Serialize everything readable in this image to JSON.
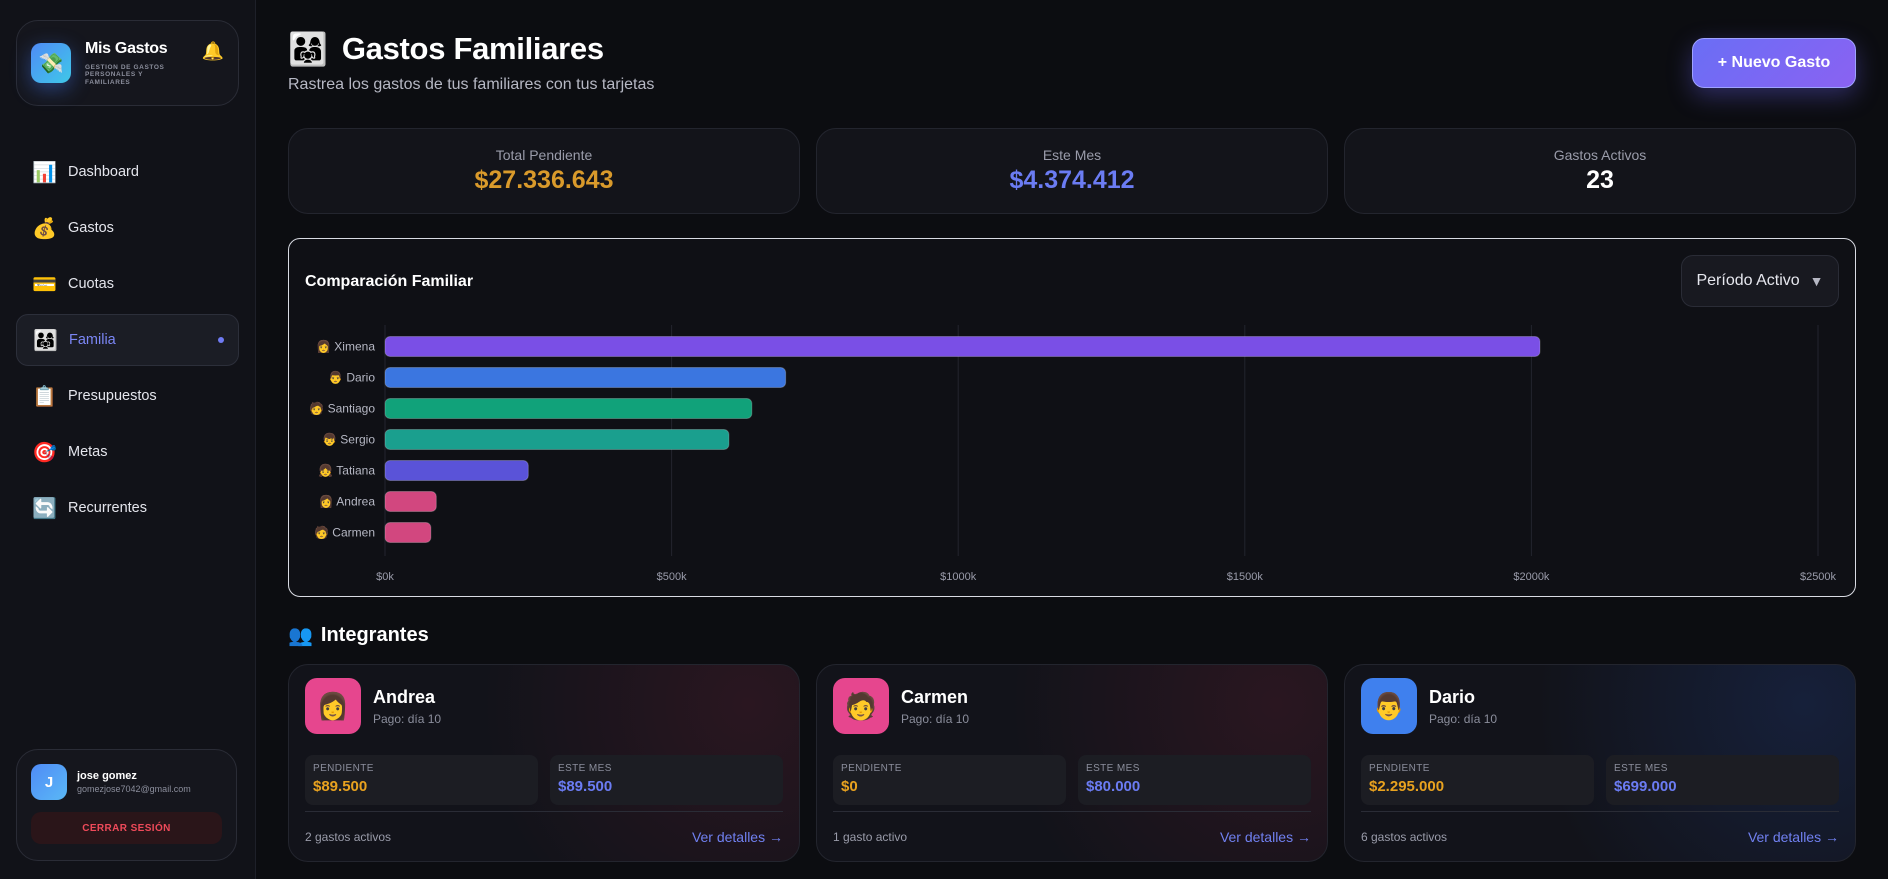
{
  "sidebar": {
    "brand_title": "Mis Gastos",
    "brand_subtitle": "GESTION DE GASTOS PERSONALES Y FAMILIARES",
    "items": [
      {
        "label": "Dashboard",
        "icon": "📊"
      },
      {
        "label": "Gastos",
        "icon": "💰"
      },
      {
        "label": "Cuotas",
        "icon": "💳"
      },
      {
        "label": "Familia",
        "icon": "👨‍👩‍👧"
      },
      {
        "label": "Presupuestos",
        "icon": "📋"
      },
      {
        "label": "Metas",
        "icon": "🎯"
      },
      {
        "label": "Recurrentes",
        "icon": "🔄"
      }
    ],
    "active_item": "Familia",
    "user": {
      "initial": "J",
      "name": "jose gomez",
      "email": "gomezjose7042@gmail.com",
      "logout_label": "CERRAR SESIÓN"
    }
  },
  "header": {
    "title": "Gastos Familiares",
    "subtitle": "Rastrea los gastos de tus familiares con tus tarjetas",
    "new_button": "+ Nuevo Gasto"
  },
  "stats": [
    {
      "label": "Total Pendiente",
      "value": "$27.336.643",
      "color": "#d99a2b"
    },
    {
      "label": "Este Mes",
      "value": "$4.374.412",
      "color": "#6b7cf3"
    },
    {
      "label": "Gastos Activos",
      "value": "23",
      "color": "#ffffff"
    }
  ],
  "chart": {
    "title": "Comparación Familiar",
    "period_label": "Período Activo"
  },
  "chart_data": {
    "type": "bar",
    "orientation": "horizontal",
    "title": "Comparación Familiar",
    "categories": [
      "👩 Ximena",
      "👨 Dario",
      "🧑 Santiago",
      "👦 Sergio",
      "👧 Tatiana",
      "👩 Andrea",
      "🧑 Carmen"
    ],
    "values": [
      2015000,
      699000,
      640000,
      600000,
      250000,
      89500,
      80000
    ],
    "colors": [
      "#7a4fe6",
      "#3b76e0",
      "#11a27a",
      "#1a9f8e",
      "#5a53d8",
      "#d2477f",
      "#d2477f"
    ],
    "xlim": [
      0,
      2500000
    ],
    "x_ticks": [
      0,
      500000,
      1000000,
      1500000,
      2000000,
      2500000
    ],
    "x_tick_labels": [
      "$0k",
      "$500k",
      "$1000k",
      "$1500k",
      "$2000k",
      "$2500k"
    ],
    "grid": true
  },
  "section": {
    "title": "Integrantes",
    "icon": "👥"
  },
  "members": [
    {
      "name": "Andrea",
      "avatar": "👩",
      "avatar_color": "#e6468e",
      "pay": "Pago: día 10",
      "pending_label": "PENDIENTE",
      "pending": "$89.500",
      "month_label": "ESTE MES",
      "month": "$89.500",
      "count": "2 gastos activos",
      "link": "Ver detalles →",
      "tint": "#2a1620"
    },
    {
      "name": "Carmen",
      "avatar": "🧑",
      "avatar_color": "#e6468e",
      "pay": "Pago: día 10",
      "pending_label": "PENDIENTE",
      "pending": "$0",
      "month_label": "ESTE MES",
      "month": "$80.000",
      "count": "1 gasto activo",
      "link": "Ver detalles →",
      "tint": "#2a1620"
    },
    {
      "name": "Dario",
      "avatar": "👨",
      "avatar_color": "#3f80ee",
      "pay": "Pago: día 10",
      "pending_label": "PENDIENTE",
      "pending": "$2.295.000",
      "month_label": "ESTE MES",
      "month": "$699.000",
      "count": "6 gastos activos",
      "link": "Ver detalles →",
      "tint": "#16203a"
    }
  ],
  "colors": {
    "pending": "#e8a21f",
    "month": "#6b7cf3"
  }
}
